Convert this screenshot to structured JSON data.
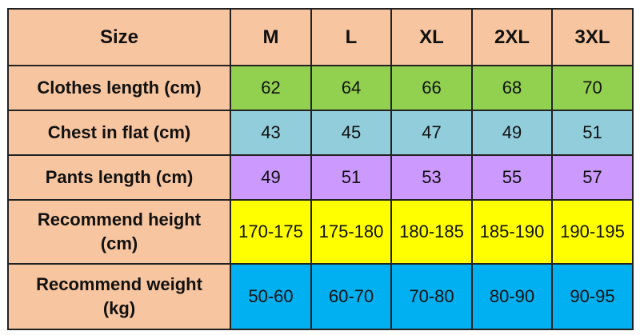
{
  "table": {
    "corner_label": "Size",
    "columns": [
      "M",
      "L",
      "XL",
      "2XL",
      "3XL"
    ],
    "rows": [
      {
        "label_lines": [
          "Clothes length (cm)"
        ],
        "values": [
          "62",
          "64",
          "66",
          "68",
          "70"
        ],
        "color": "#92d050"
      },
      {
        "label_lines": [
          "Chest in flat (cm)"
        ],
        "values": [
          "43",
          "45",
          "47",
          "49",
          "51"
        ],
        "color": "#92cddc"
      },
      {
        "label_lines": [
          "Pants length (cm)"
        ],
        "values": [
          "49",
          "51",
          "53",
          "55",
          "57"
        ],
        "color": "#cc99ff"
      },
      {
        "label_lines": [
          "Recommend height",
          "(cm)"
        ],
        "values": [
          "170-175",
          "175-180",
          "180-185",
          "185-190",
          "190-195"
        ],
        "color": "#ffff00"
      },
      {
        "label_lines": [
          "Recommend weight",
          "(kg)"
        ],
        "values": [
          "50-60",
          "60-70",
          "70-80",
          "80-90",
          "90-95"
        ],
        "color": "#00b0f0"
      }
    ],
    "header_color": "#f7c59f"
  }
}
